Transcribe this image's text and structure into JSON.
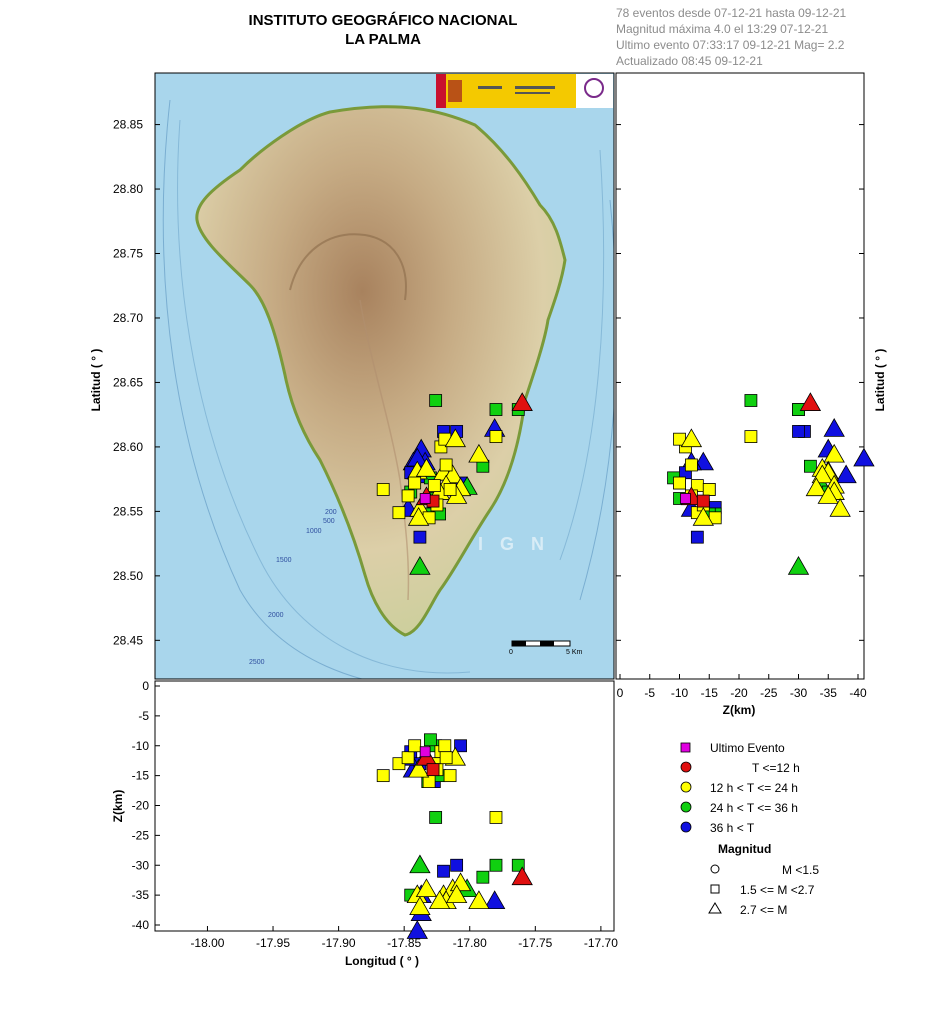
{
  "header": {
    "title_line1": "INSTITUTO GEOGRÁFICO NACIONAL",
    "title_line2": "LA PALMA"
  },
  "info": {
    "line1": "78 eventos desde 07-12-21 hasta 09-12-21",
    "line2": "Magnitud máxima 4.0 el 13:29 07-12-21",
    "line3": "Ultimo evento   07:33:17 09-12-21  Mag= 2.2",
    "line4": "Actualizado   08:45  09-12-21"
  },
  "map": {
    "watermark": "I G N",
    "scale_start": "0",
    "scale_end": "5 Km",
    "contours": [
      "200",
      "500",
      "1000",
      "1500",
      "2000",
      "2500"
    ]
  },
  "legend": {
    "last_event": "Ultimo Evento",
    "t1": "T <=12 h",
    "t2": "12 h  < T <= 24 h",
    "t3": "24 h  < T <= 36 h",
    "t4": "36 h <  T",
    "mag_title": "Magnitud",
    "m1": "M <1.5",
    "m2": "1.5 <= M <2.7",
    "m3": "2.7 <= M"
  },
  "colors": {
    "last": "#e000e0",
    "red": "#e01010",
    "yellow": "#ffff00",
    "green": "#10d010",
    "blue": "#1010e0",
    "sea": "#a9d6ec",
    "land": "#d9c9a2"
  },
  "chart_data": {
    "type": "scatter",
    "axes": {
      "map": {
        "xlim": [
          -18.04,
          -17.69
        ],
        "ylim": [
          28.42,
          28.89
        ],
        "ylabel": "Latitud ( ° )",
        "yticks": [
          "28.45",
          "28.50",
          "28.55",
          "28.60",
          "28.65",
          "28.70",
          "28.75",
          "28.80",
          "28.85"
        ]
      },
      "lat_depth": {
        "xlim": [
          0,
          -41
        ],
        "ylabel": "Latitud ( ° )",
        "xlabel": "Z(km)",
        "xticks": [
          "0",
          "-5",
          "-10",
          "-15",
          "-20",
          "-25",
          "-30",
          "-35",
          "-40"
        ]
      },
      "lon_depth": {
        "ylim": [
          0,
          -41
        ],
        "ylabel": "Z(km)",
        "xlabel": "Longitud ( ° )",
        "xticks": [
          "-18.00",
          "-17.95",
          "-17.90",
          "-17.85",
          "-17.80",
          "-17.75",
          "-17.70"
        ],
        "yticks": [
          "0",
          "-5",
          "-10",
          "-15",
          "-20",
          "-25",
          "-30",
          "-35",
          "-40"
        ]
      }
    },
    "series": [
      {
        "lon": -17.76,
        "lat": 28.634,
        "z": -32,
        "color": "red",
        "mag": "large"
      },
      {
        "lon": -17.833,
        "lat": 28.561,
        "z": -12,
        "color": "red",
        "mag": "large"
      },
      {
        "lon": -17.828,
        "lat": 28.558,
        "z": -14,
        "color": "red",
        "mag": "medium"
      },
      {
        "lon": -17.834,
        "lat": 28.56,
        "z": -11,
        "color": "last",
        "mag": "medium"
      },
      {
        "lon": -17.826,
        "lat": 28.636,
        "z": -22,
        "color": "green",
        "mag": "medium"
      },
      {
        "lon": -17.78,
        "lat": 28.629,
        "z": -30,
        "color": "green",
        "mag": "medium"
      },
      {
        "lon": -17.763,
        "lat": 28.629,
        "z": -30,
        "color": "green",
        "mag": "medium"
      },
      {
        "lon": -17.79,
        "lat": 28.585,
        "z": -32,
        "color": "green",
        "mag": "medium"
      },
      {
        "lon": -17.802,
        "lat": 28.569,
        "z": -34,
        "color": "green",
        "mag": "large"
      },
      {
        "lon": -17.838,
        "lat": 28.507,
        "z": -30,
        "color": "green",
        "mag": "large"
      },
      {
        "lon": -17.832,
        "lat": 28.548,
        "z": -16,
        "color": "green",
        "mag": "medium"
      },
      {
        "lon": -17.826,
        "lat": 28.56,
        "z": -10,
        "color": "green",
        "mag": "medium"
      },
      {
        "lon": -17.845,
        "lat": 28.565,
        "z": -35,
        "color": "green",
        "mag": "medium"
      },
      {
        "lon": -17.83,
        "lat": 28.576,
        "z": -9,
        "color": "green",
        "mag": "medium"
      },
      {
        "lon": -17.823,
        "lat": 28.548,
        "z": -15,
        "color": "green",
        "mag": "medium"
      },
      {
        "lon": -17.78,
        "lat": 28.608,
        "z": -22,
        "color": "yellow",
        "mag": "medium"
      },
      {
        "lon": -17.866,
        "lat": 28.567,
        "z": -15,
        "color": "yellow",
        "mag": "medium"
      },
      {
        "lon": -17.854,
        "lat": 28.549,
        "z": -13,
        "color": "yellow",
        "mag": "medium"
      },
      {
        "lon": -17.822,
        "lat": 28.6,
        "z": -11,
        "color": "yellow",
        "mag": "medium"
      },
      {
        "lon": -17.819,
        "lat": 28.606,
        "z": -10,
        "color": "yellow",
        "mag": "medium"
      },
      {
        "lon": -17.811,
        "lat": 28.606,
        "z": -12,
        "color": "yellow",
        "mag": "large"
      },
      {
        "lon": -17.793,
        "lat": 28.594,
        "z": -36,
        "color": "yellow",
        "mag": "large"
      },
      {
        "lon": -17.84,
        "lat": 28.581,
        "z": -35,
        "color": "yellow",
        "mag": "large"
      },
      {
        "lon": -17.833,
        "lat": 28.583,
        "z": -34,
        "color": "yellow",
        "mag": "large"
      },
      {
        "lon": -17.82,
        "lat": 28.58,
        "z": -35,
        "color": "yellow",
        "mag": "large"
      },
      {
        "lon": -17.813,
        "lat": 28.578,
        "z": -34,
        "color": "yellow",
        "mag": "large"
      },
      {
        "lon": -17.818,
        "lat": 28.57,
        "z": -36,
        "color": "yellow",
        "mag": "large"
      },
      {
        "lon": -17.807,
        "lat": 28.568,
        "z": -33,
        "color": "yellow",
        "mag": "large"
      },
      {
        "lon": -17.823,
        "lat": 28.565,
        "z": -36,
        "color": "yellow",
        "mag": "large"
      },
      {
        "lon": -17.81,
        "lat": 28.562,
        "z": -35,
        "color": "yellow",
        "mag": "large"
      },
      {
        "lon": -17.838,
        "lat": 28.552,
        "z": -37,
        "color": "yellow",
        "mag": "large"
      },
      {
        "lon": -17.827,
        "lat": 28.57,
        "z": -13,
        "color": "yellow",
        "mag": "medium"
      },
      {
        "lon": -17.815,
        "lat": 28.567,
        "z": -15,
        "color": "yellow",
        "mag": "medium"
      },
      {
        "lon": -17.847,
        "lat": 28.562,
        "z": -12,
        "color": "yellow",
        "mag": "medium"
      },
      {
        "lon": -17.825,
        "lat": 28.555,
        "z": -14,
        "color": "yellow",
        "mag": "medium"
      },
      {
        "lon": -17.842,
        "lat": 28.572,
        "z": -10,
        "color": "yellow",
        "mag": "medium"
      },
      {
        "lon": -17.818,
        "lat": 28.586,
        "z": -12,
        "color": "yellow",
        "mag": "medium"
      },
      {
        "lon": -17.831,
        "lat": 28.545,
        "z": -16,
        "color": "yellow",
        "mag": "medium"
      },
      {
        "lon": -17.839,
        "lat": 28.545,
        "z": -14,
        "color": "yellow",
        "mag": "large"
      },
      {
        "lon": -17.82,
        "lat": 28.612,
        "z": -31,
        "color": "blue",
        "mag": "medium"
      },
      {
        "lon": -17.81,
        "lat": 28.612,
        "z": -30,
        "color": "blue",
        "mag": "medium"
      },
      {
        "lon": -17.781,
        "lat": 28.614,
        "z": -36,
        "color": "blue",
        "mag": "large"
      },
      {
        "lon": -17.837,
        "lat": 28.598,
        "z": -35,
        "color": "blue",
        "mag": "large"
      },
      {
        "lon": -17.843,
        "lat": 28.588,
        "z": -14,
        "color": "blue",
        "mag": "large"
      },
      {
        "lon": -17.834,
        "lat": 28.588,
        "z": -12,
        "color": "blue",
        "mag": "large"
      },
      {
        "lon": -17.807,
        "lat": 28.572,
        "z": -10,
        "color": "blue",
        "mag": "medium"
      },
      {
        "lon": -17.837,
        "lat": 28.578,
        "z": -38,
        "color": "blue",
        "mag": "large"
      },
      {
        "lon": -17.838,
        "lat": 28.53,
        "z": -13,
        "color": "blue",
        "mag": "medium"
      },
      {
        "lon": -17.847,
        "lat": 28.552,
        "z": -12,
        "color": "blue",
        "mag": "large"
      },
      {
        "lon": -17.845,
        "lat": 28.58,
        "z": -11,
        "color": "blue",
        "mag": "medium"
      },
      {
        "lon": -17.84,
        "lat": 28.591,
        "z": -41,
        "color": "blue",
        "mag": "large"
      },
      {
        "lon": -17.827,
        "lat": 28.553,
        "z": -16,
        "color": "blue",
        "mag": "medium"
      }
    ]
  }
}
